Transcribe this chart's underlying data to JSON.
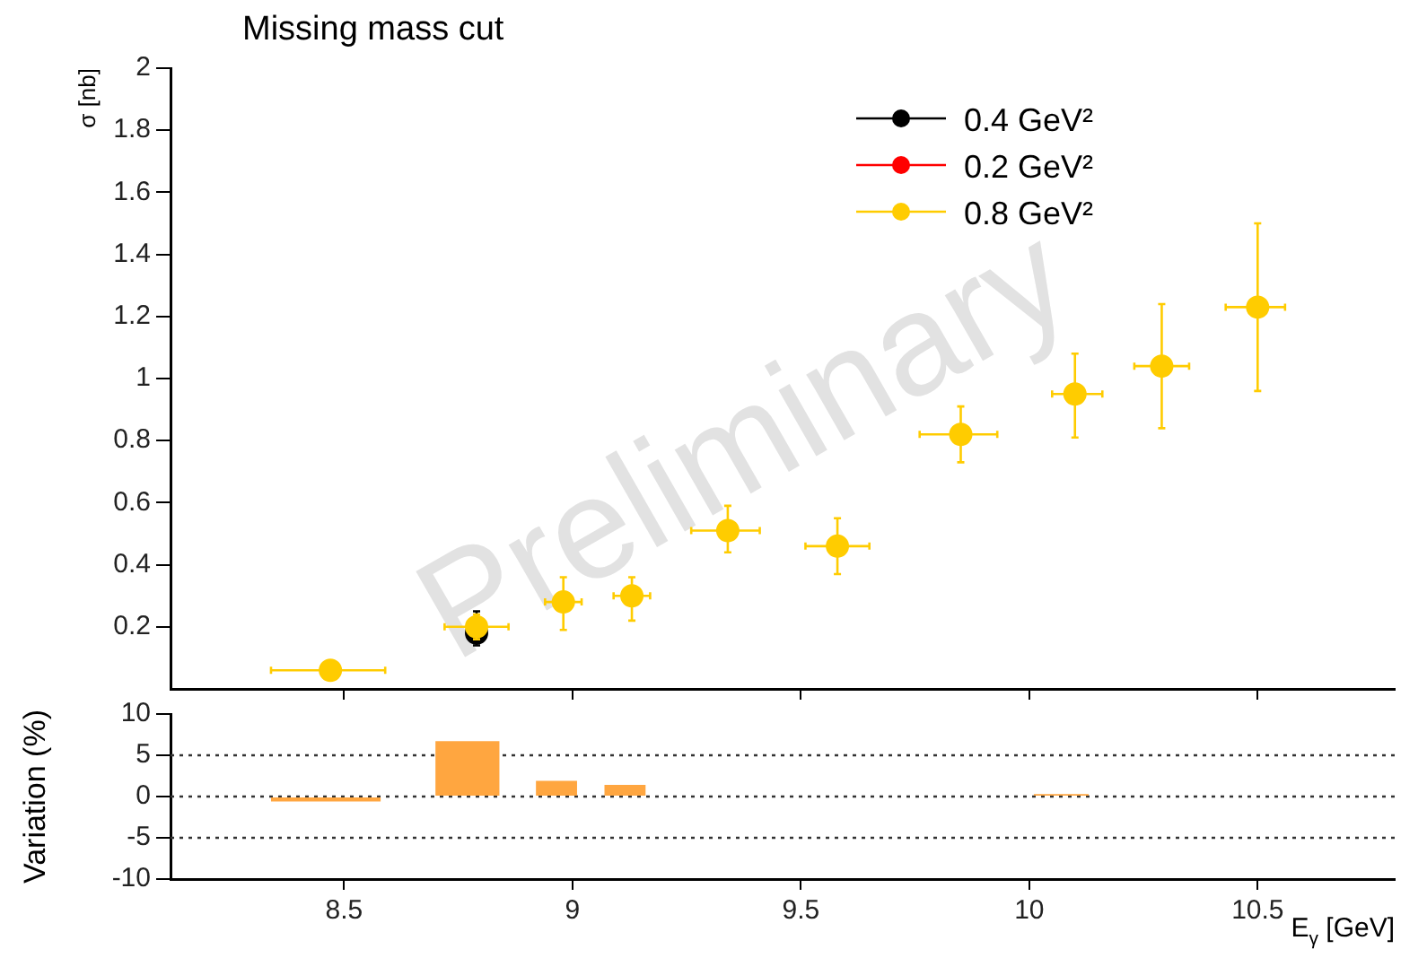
{
  "chart_data": [
    {
      "type": "scatter",
      "title": "Missing mass cut",
      "ylabel": "σ [nb]",
      "xlim": [
        8.12,
        10.8
      ],
      "xticks": [
        8.5,
        9,
        9.5,
        10,
        10.5
      ],
      "ylim": [
        0,
        2
      ],
      "yticks": [
        0.2,
        0.4,
        0.6,
        0.8,
        1,
        1.2,
        1.4,
        1.6,
        1.8,
        2
      ],
      "tick_labels": "y",
      "legend": "top right",
      "marker": "circle",
      "annotations": [
        "Preliminary"
      ],
      "x": [
        8.47,
        8.79,
        8.98,
        9.13,
        9.34,
        9.58,
        9.85,
        10.1,
        10.29,
        10.5
      ],
      "series": [
        {
          "name": "0.4 GeV²",
          "color": "#000000",
          "values": [
            null,
            0.18,
            null,
            null,
            null,
            null,
            null,
            null,
            null,
            null
          ],
          "errors": [
            null,
            [
              0.14,
              0.25
            ],
            null,
            null,
            null,
            null,
            null,
            null,
            null,
            null
          ]
        },
        {
          "name": "0.2 GeV²",
          "color": "#ff0000",
          "values": [
            null,
            null,
            null,
            null,
            null,
            null,
            null,
            null,
            null,
            null
          ]
        },
        {
          "name": "0.8 GeV²",
          "color": "#ffcc00",
          "values": [
            0.06,
            0.2,
            0.28,
            0.3,
            0.51,
            0.46,
            0.82,
            0.95,
            1.04,
            1.23
          ],
          "errors": [
            null,
            [
              0.16,
              0.24
            ],
            [
              0.19,
              0.36
            ],
            [
              0.22,
              0.36
            ],
            [
              0.44,
              0.59
            ],
            [
              0.37,
              0.55
            ],
            [
              0.73,
              0.91
            ],
            [
              0.81,
              1.08
            ],
            [
              0.84,
              1.24
            ],
            [
              0.96,
              1.5
            ]
          ],
          "xerrors": [
            [
              8.34,
              8.59
            ],
            [
              8.72,
              8.86
            ],
            [
              8.94,
              9.02
            ],
            [
              9.09,
              9.17
            ],
            [
              9.26,
              9.41
            ],
            [
              9.51,
              9.65
            ],
            [
              9.76,
              9.93
            ],
            [
              10.05,
              10.16
            ],
            [
              10.23,
              10.35
            ],
            [
              10.43,
              10.56
            ]
          ]
        }
      ]
    },
    {
      "type": "histogram",
      "ylabel": "Variation (%)",
      "xlabel": "E$_{γ}$ [GeV]",
      "xlim": [
        8.12,
        10.8
      ],
      "xticks": [
        8.5,
        9,
        9.5,
        10,
        10.5
      ],
      "ylim": [
        -10,
        10
      ],
      "yticks": [
        -10,
        -5,
        0,
        5,
        10
      ],
      "color": "#ffa640",
      "bins": [
        8.34,
        8.58,
        8.7,
        8.84,
        8.92,
        9.01,
        9.07,
        9.16,
        9.24,
        9.39,
        9.48,
        9.63,
        9.73,
        9.91,
        10.01,
        10.13,
        10.21,
        10.3,
        10.39,
        10.52
      ],
      "values": [
        -0.6,
        null,
        6.7,
        null,
        1.9,
        null,
        1.4,
        null,
        -0.1,
        null,
        -0.1,
        null,
        -0.1,
        null,
        0.3,
        null,
        -0.1,
        null,
        -0.1
      ],
      "ref_lines": [
        {
          "axis": "y",
          "value": 5,
          "line_style": "dotted"
        },
        {
          "axis": "y",
          "value": 0,
          "line_style": "dotted"
        },
        {
          "axis": "y",
          "value": -5,
          "line_style": "dotted"
        }
      ]
    }
  ]
}
